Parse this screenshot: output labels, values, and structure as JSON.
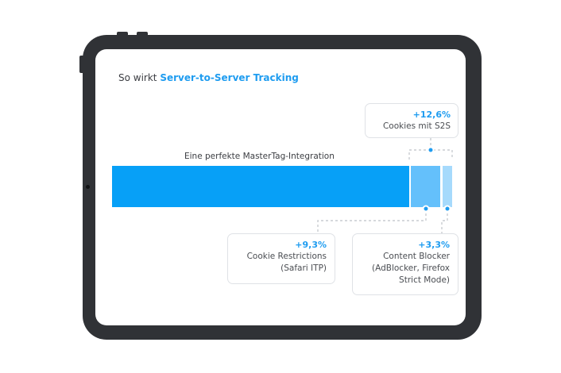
{
  "title": {
    "prefix": "So wirkt",
    "highlight": "Server-to-Server Tracking"
  },
  "bar_label": "Eine perfekte MasterTag-Integration",
  "callouts": {
    "s2s": {
      "value": "+12,6%",
      "line1": "Cookies mit S2S"
    },
    "cookie": {
      "value": "+9,3%",
      "line1": "Cookie Restrictions",
      "line2": "(Safari ITP)"
    },
    "blocker": {
      "value": "+3,3%",
      "line1": "Content Blocker",
      "line2": "(AdBlocker, Firefox",
      "line3": "Strict Mode)"
    }
  },
  "colors": {
    "accent": "#1e9cf0",
    "bar_main": "#07a0f7",
    "bar_s2s": "#64c0fb",
    "bar_blocker": "#a6dafc",
    "device": "#303236"
  }
}
